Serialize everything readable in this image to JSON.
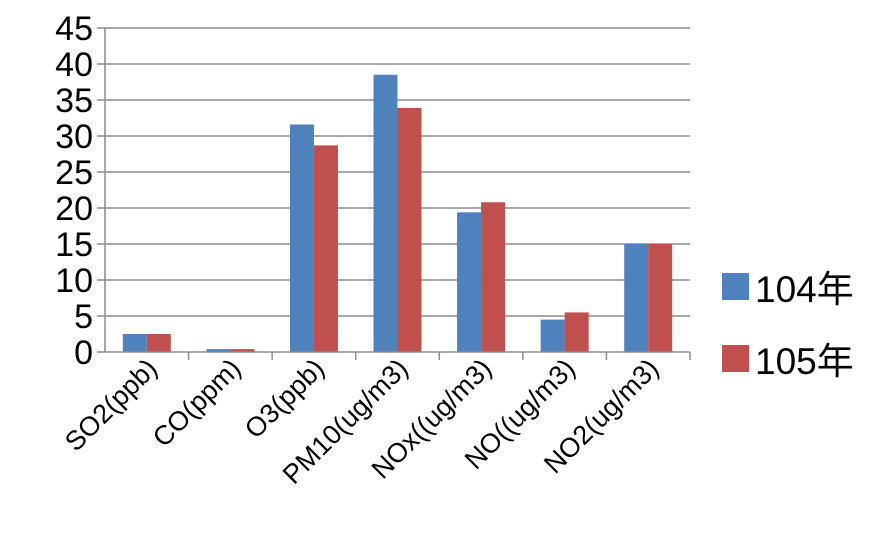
{
  "chart_data": {
    "type": "bar",
    "categories": [
      "SO2(ppb)",
      "CO(ppm)",
      "O3(ppb)",
      "PM10(ug/m3)",
      "NOx((ug/m3)",
      "NO((ug/m3)",
      "NO2(ug/m3)"
    ],
    "series": [
      {
        "name": "104年",
        "color": "#4F81BD",
        "values": [
          2.5,
          0.4,
          31.6,
          38.5,
          19.4,
          4.5,
          15.0
        ]
      },
      {
        "name": "105年",
        "color": "#C0504D",
        "values": [
          2.5,
          0.4,
          28.7,
          33.9,
          20.8,
          5.5,
          15.0
        ]
      }
    ],
    "ylim": [
      0,
      45
    ],
    "yticks": [
      "0",
      "5",
      "10",
      "15",
      "20",
      "25",
      "30",
      "35",
      "40",
      "45"
    ],
    "grid": true,
    "legend_position": "right"
  }
}
